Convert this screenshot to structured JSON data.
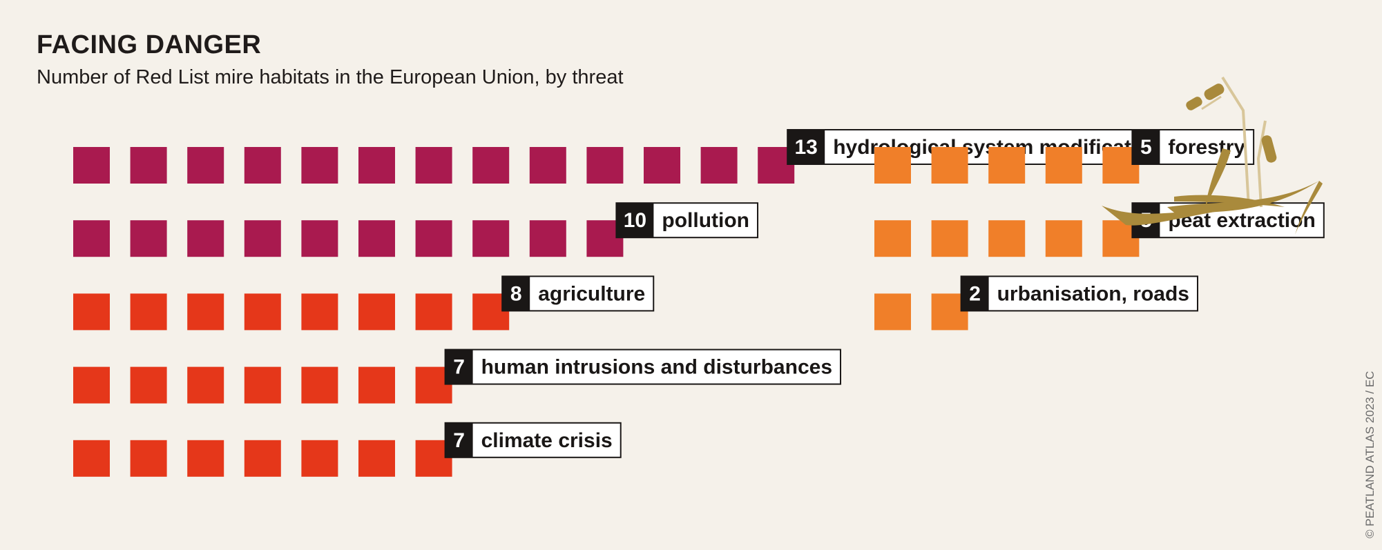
{
  "title": "FACING DANGER",
  "subtitle": "Number of Red List mire habitats in the European Union, by threat",
  "credit": "© PEATLAND ATLAS 2023 / EC",
  "colors": {
    "high": "#a91a4f",
    "medium": "#e5371a",
    "low": "#f07f29",
    "label_box": "#1a1716",
    "illustration": "#a98a3c"
  },
  "chart_data": {
    "type": "pictogram",
    "unit": "Red List mire habitats",
    "series": [
      {
        "label": "hydrological system modifications",
        "value": 13,
        "color": "high"
      },
      {
        "label": "pollution",
        "value": 10,
        "color": "high"
      },
      {
        "label": "agriculture",
        "value": 8,
        "color": "medium"
      },
      {
        "label": "human intrusions and disturbances",
        "value": 7,
        "color": "medium"
      },
      {
        "label": "climate crisis",
        "value": 7,
        "color": "medium"
      },
      {
        "label": "forestry",
        "value": 5,
        "color": "low"
      },
      {
        "label": "peat extraction",
        "value": 5,
        "color": "low"
      },
      {
        "label": "urbanisation, roads",
        "value": 2,
        "color": "low"
      }
    ]
  }
}
